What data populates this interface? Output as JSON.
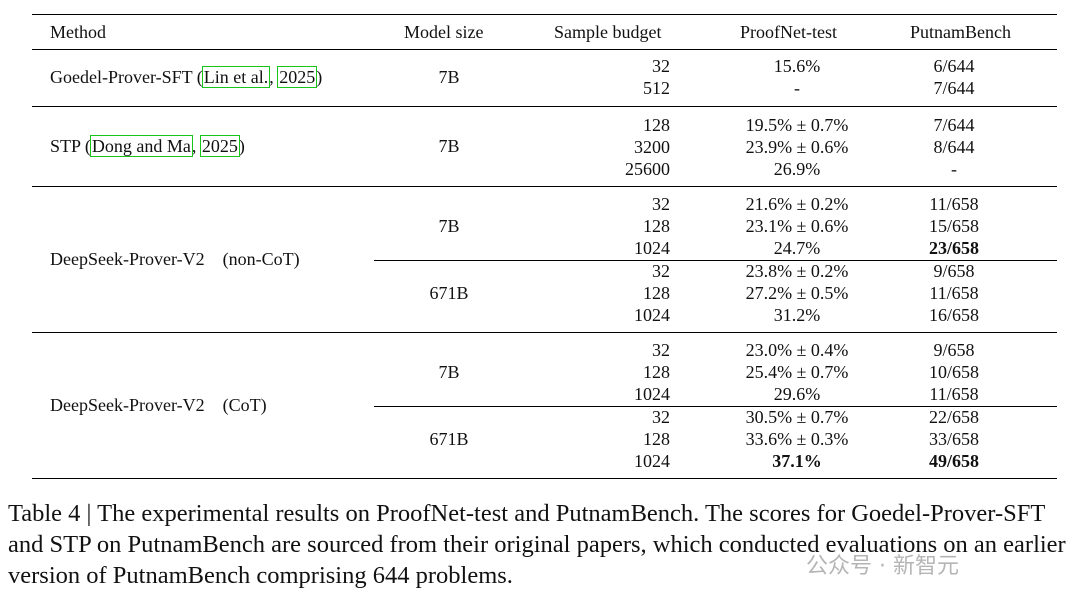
{
  "headers": {
    "method": "Method",
    "model_size": "Model size",
    "sample_budget": "Sample budget",
    "proofnet": "ProofNet-test",
    "putnam": "PutnamBench"
  },
  "goedel": {
    "name": "Goedel-Prover-SFT",
    "open": "(",
    "cite1": "Lin et al.",
    "cite2": "2025",
    "close": ")",
    "size": "7B",
    "rows": [
      {
        "budget": "32",
        "pn": "15.6%",
        "pb": "6/644"
      },
      {
        "budget": "512",
        "pn": "-",
        "pb": "7/644"
      }
    ]
  },
  "stp": {
    "name": "STP",
    "open": "(",
    "cite1": "Dong and Ma",
    "cite2": "2025",
    "close": ")",
    "size": "7B",
    "rows": [
      {
        "budget": "128",
        "pn": "19.5% ± 0.7%",
        "pb": "7/644"
      },
      {
        "budget": "3200",
        "pn": "23.9% ± 0.6%",
        "pb": "8/644"
      },
      {
        "budget": "25600",
        "pn": "26.9%",
        "pb": "-"
      }
    ]
  },
  "ds_noncot": {
    "name": "DeepSeek-Prover-V2",
    "mode": "(non-CoT)",
    "small": {
      "size": "7B",
      "rows": [
        {
          "budget": "32",
          "pn": "21.6% ± 0.2%",
          "pb": "11/658"
        },
        {
          "budget": "128",
          "pn": "23.1% ± 0.6%",
          "pb": "15/658"
        },
        {
          "budget": "1024",
          "pn": "24.7%",
          "pb": "23/658"
        }
      ]
    },
    "large": {
      "size": "671B",
      "rows": [
        {
          "budget": "32",
          "pn": "23.8% ± 0.2%",
          "pb": "9/658"
        },
        {
          "budget": "128",
          "pn": "27.2% ± 0.5%",
          "pb": "11/658"
        },
        {
          "budget": "1024",
          "pn": "31.2%",
          "pb": "16/658"
        }
      ]
    }
  },
  "ds_cot": {
    "name": "DeepSeek-Prover-V2",
    "mode": "(CoT)",
    "small": {
      "size": "7B",
      "rows": [
        {
          "budget": "32",
          "pn": "23.0% ± 0.4%",
          "pb": "9/658"
        },
        {
          "budget": "128",
          "pn": "25.4% ± 0.7%",
          "pb": "10/658"
        },
        {
          "budget": "1024",
          "pn": "29.6%",
          "pb": "11/658"
        }
      ]
    },
    "large": {
      "size": "671B",
      "rows": [
        {
          "budget": "32",
          "pn": "30.5% ± 0.7%",
          "pb": "22/658"
        },
        {
          "budget": "128",
          "pn": "33.6% ± 0.3%",
          "pb": "33/658"
        },
        {
          "budget": "1024",
          "pn": "37.1%",
          "pb": "49/658"
        }
      ]
    }
  },
  "caption": "Table 4 | The experimental results on ProofNet-test and PutnamBench. The scores for Goedel-Prover-SFT and STP on PutnamBench are sourced from their original papers, which conducted evaluations on an earlier version of PutnamBench comprising 644 problems.",
  "watermark": "公众号 · 新智元"
}
